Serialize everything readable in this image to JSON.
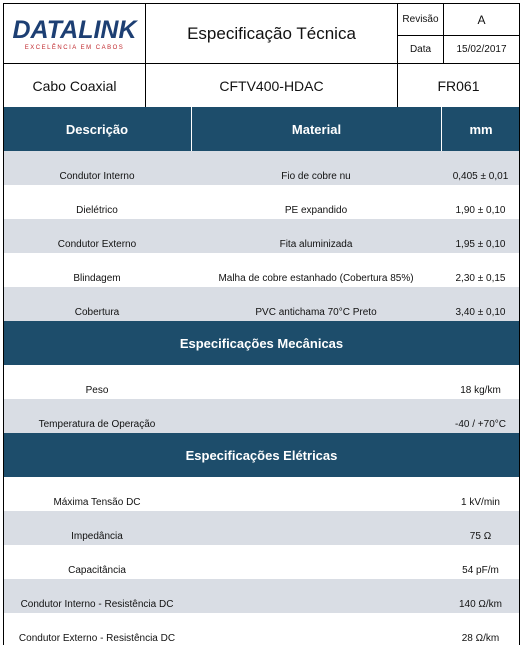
{
  "header": {
    "logo": "DATALINK",
    "tagline": "EXCELÊNCIA EM CABOS",
    "title": "Especificação Técnica",
    "revision_label": "Revisão",
    "revision": "A",
    "date_label": "Data",
    "date": "15/02/2017"
  },
  "product": {
    "name": "Cabo Coaxial",
    "model": "CFTV400-HDAC",
    "code": "FR061"
  },
  "table": {
    "columns": [
      "Descrição",
      "Material",
      "mm"
    ],
    "rows": [
      [
        "Condutor Interno",
        "Fio de cobre nu",
        "0,405 ± 0,01"
      ],
      [
        "Dielétrico",
        "PE expandido",
        "1,90 ± 0,10"
      ],
      [
        "Condutor Externo",
        "Fita aluminizada",
        "1,95 ± 0,10"
      ],
      [
        "Blindagem",
        "Malha de cobre estanhado (Cobertura 85%)",
        "2,30 ± 0,15"
      ],
      [
        "Cobertura",
        "PVC antichama 70°C Preto",
        "3,40 ± 0,10"
      ]
    ]
  },
  "mechanical": {
    "title": "Especificações Mecânicas",
    "rows": [
      [
        "Peso",
        "18 kg/km"
      ],
      [
        "Temperatura de Operação",
        "-40 / +70°C"
      ]
    ]
  },
  "electrical": {
    "title": "Especificações Elétricas",
    "rows": [
      [
        "Máxima Tensão DC",
        "1 kV/min"
      ],
      [
        "Impedância",
        "75 Ω"
      ],
      [
        "Capacitância",
        "54 pF/m"
      ],
      [
        "Condutor Interno - Resistência DC",
        "140 Ω/km"
      ],
      [
        "Condutor Externo - Resistência DC",
        "28 Ω/km"
      ]
    ]
  }
}
